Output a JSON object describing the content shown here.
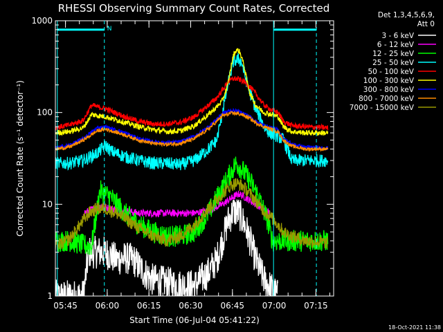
{
  "chart_data": {
    "type": "line",
    "title": "RHESSI Observing Summary Count Rates, Corrected",
    "xlabel": "Start Time (06-Jul-04 05:41:22)",
    "ylabel": "Corrected Count Rate (s⁻¹ detector⁻¹)",
    "yscale": "log",
    "ylim": [
      1,
      1000
    ],
    "xlim_minutes": [
      0,
      100
    ],
    "x_unit": "minutes after 05:41:22",
    "y_ticks": [
      {
        "value": 1,
        "label": "1"
      },
      {
        "value": 10,
        "label": "10"
      },
      {
        "value": 100,
        "label": "100"
      },
      {
        "value": 1000,
        "label": "1000"
      }
    ],
    "x_ticks": [
      {
        "value": 3.63,
        "label": "05:45"
      },
      {
        "value": 18.63,
        "label": "06:00"
      },
      {
        "value": 33.63,
        "label": "06:15"
      },
      {
        "value": 48.63,
        "label": "06:30"
      },
      {
        "value": 63.63,
        "label": "06:45"
      },
      {
        "value": 78.63,
        "label": "07:00"
      },
      {
        "value": 93.63,
        "label": "07:15"
      }
    ],
    "legend": {
      "header": [
        "Det 1,3,4,5,6,9,",
        "Att 0"
      ],
      "placement": "right"
    },
    "series": [
      {
        "name": "3 - 6 keV",
        "color": "#ffffff",
        "noise": 0.18,
        "x": [
          0,
          10,
          12,
          18,
          22,
          25,
          28,
          32,
          35,
          40,
          45,
          50,
          55,
          58,
          60,
          62,
          64,
          66,
          68,
          70,
          72,
          75,
          80
        ],
        "y": [
          1,
          1,
          3,
          3,
          2.5,
          2.6,
          2.5,
          1.8,
          1.5,
          1.4,
          1.3,
          1.3,
          1.8,
          2.5,
          4,
          6.5,
          8.5,
          8,
          6,
          4,
          2.5,
          1.5,
          1
        ]
      },
      {
        "name": "6 - 12 keV",
        "color": "#ff00ff",
        "noise": 0.04,
        "x": [
          10,
          16,
          20,
          30,
          40,
          50,
          55,
          60,
          64,
          66,
          68,
          72,
          75,
          77
        ],
        "y": [
          8,
          9.5,
          9,
          8,
          8,
          8,
          8.5,
          10,
          12,
          13,
          12,
          10,
          9,
          8
        ]
      },
      {
        "name": "12 - 25 keV",
        "color": "#00ff00",
        "noise": 0.12,
        "x": [
          0,
          5,
          10,
          13,
          16,
          20,
          25,
          30,
          35,
          40,
          45,
          50,
          55,
          60,
          63,
          65,
          67,
          70,
          73,
          76,
          78,
          80,
          85,
          90,
          98
        ],
        "y": [
          4,
          4,
          3.6,
          3.5,
          14,
          12,
          8,
          6,
          5,
          4.5,
          4.5,
          5,
          8,
          15,
          22,
          28,
          24,
          18,
          12,
          7,
          4,
          4,
          4,
          4,
          4
        ]
      },
      {
        "name": "25 - 50 keV",
        "color": "#00ffff",
        "noise": 0.07,
        "x": [
          0,
          5,
          10,
          15,
          18,
          20,
          25,
          30,
          35,
          40,
          45,
          50,
          55,
          58,
          60,
          62,
          64,
          66,
          67,
          69,
          72,
          75,
          77,
          80,
          82,
          85,
          90,
          98
        ],
        "y": [
          28,
          28,
          30,
          36,
          44,
          38,
          33,
          30,
          28,
          28,
          27,
          30,
          40,
          50,
          100,
          200,
          360,
          380,
          350,
          200,
          110,
          70,
          60,
          55,
          50,
          30,
          30,
          30
        ]
      },
      {
        "name": "50 - 100 keV",
        "color": "#ff0000",
        "noise": 0.03,
        "x": [
          0,
          5,
          10,
          13,
          18,
          25,
          30,
          35,
          40,
          45,
          50,
          55,
          58,
          60,
          62,
          64,
          66,
          68,
          70,
          72,
          75,
          78,
          80,
          82,
          85,
          90,
          98
        ],
        "y": [
          68,
          73,
          82,
          120,
          110,
          90,
          80,
          75,
          75,
          78,
          90,
          120,
          145,
          175,
          215,
          235,
          230,
          215,
          190,
          160,
          120,
          105,
          100,
          80,
          72,
          70,
          68
        ]
      },
      {
        "name": "100 - 300 keV",
        "color": "#ffff00",
        "noise": 0.03,
        "x": [
          0,
          5,
          10,
          13,
          18,
          25,
          30,
          35,
          40,
          45,
          50,
          55,
          58,
          60,
          62,
          63,
          64,
          65,
          66,
          67,
          68,
          69,
          70,
          72,
          75,
          78,
          80,
          82,
          85,
          90,
          98
        ],
        "y": [
          60,
          62,
          68,
          95,
          90,
          78,
          70,
          65,
          62,
          63,
          72,
          95,
          115,
          135,
          200,
          300,
          420,
          480,
          470,
          400,
          300,
          210,
          160,
          120,
          100,
          95,
          90,
          70,
          62,
          60,
          60
        ]
      },
      {
        "name": "300 - 800 keV",
        "color": "#0000ff",
        "noise": 0.02,
        "x": [
          0,
          5,
          10,
          15,
          18,
          25,
          30,
          35,
          40,
          45,
          50,
          55,
          58,
          60,
          63,
          65,
          67,
          70,
          72,
          75,
          78,
          80,
          82,
          85,
          90,
          98
        ],
        "y": [
          41,
          44,
          52,
          68,
          70,
          60,
          52,
          48,
          47,
          48,
          55,
          70,
          85,
          98,
          105,
          104,
          100,
          90,
          80,
          72,
          68,
          65,
          52,
          45,
          42,
          41
        ]
      },
      {
        "name": "800 - 7000 keV",
        "color": "#ff8c00",
        "noise": 0.02,
        "x": [
          0,
          5,
          10,
          15,
          18,
          25,
          30,
          35,
          40,
          45,
          50,
          55,
          58,
          60,
          63,
          65,
          67,
          70,
          72,
          75,
          78,
          80,
          82,
          85,
          90,
          98
        ],
        "y": [
          40,
          42,
          50,
          63,
          66,
          57,
          50,
          46,
          45,
          46,
          52,
          66,
          80,
          92,
          98,
          98,
          95,
          86,
          77,
          70,
          65,
          62,
          50,
          43,
          40,
          40
        ]
      },
      {
        "name": "7000 - 15000 keV",
        "color": "#999900",
        "noise": 0.07,
        "x": [
          0,
          3,
          5,
          8,
          12,
          15,
          18,
          22,
          25,
          30,
          35,
          40,
          45,
          50,
          55,
          60,
          63,
          65,
          67,
          70,
          73,
          75,
          78,
          80,
          82,
          85,
          90,
          98
        ],
        "y": [
          3.5,
          3.8,
          4.2,
          5.5,
          8,
          9,
          9,
          8,
          7,
          5.5,
          4.5,
          4,
          4.5,
          6,
          9,
          13,
          16,
          17,
          16,
          13,
          10,
          8.5,
          7,
          6,
          5,
          4.5,
          4,
          3.8
        ]
      }
    ],
    "vertical_markers": [
      {
        "x": 0.7,
        "style": "solid",
        "color": "#00ffff"
      },
      {
        "x": 17.6,
        "style": "dashed",
        "color": "#00ffff",
        "label": "N"
      },
      {
        "x": 78.4,
        "style": "solid",
        "color": "#00ffff"
      },
      {
        "x": 93.8,
        "style": "dashed",
        "color": "#00ffff"
      }
    ],
    "horizontal_bars": [
      {
        "x_start": 0.7,
        "x_end": 17.6,
        "y": 800,
        "color": "#00ffff"
      },
      {
        "x_start": 78.4,
        "x_end": 93.8,
        "y": 800,
        "color": "#00ffff"
      }
    ]
  },
  "footer": {
    "timestamp": "18-Oct-2021 11:38"
  }
}
